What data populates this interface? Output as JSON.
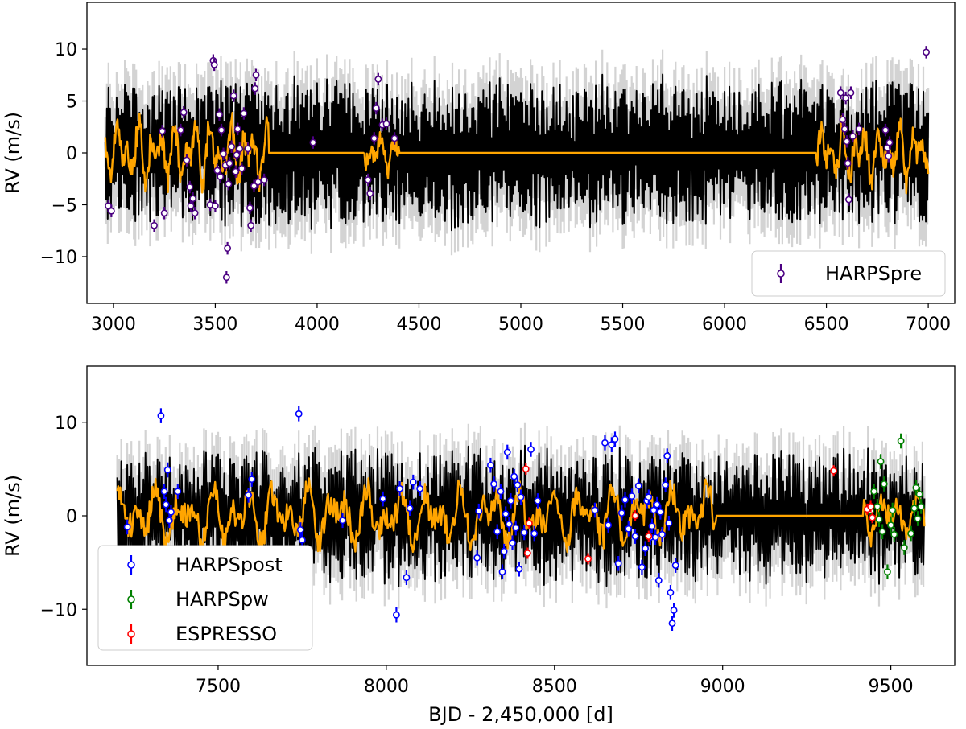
{
  "chart_data": [
    {
      "type": "scatter",
      "panel": "top",
      "ylabel": "RV (m/s)",
      "xlabel": "",
      "xlim": [
        2870,
        7130
      ],
      "ylim": [
        -14.5,
        14.5
      ],
      "xticks": [
        3000,
        3500,
        4000,
        4500,
        5000,
        5500,
        6000,
        6500,
        7000
      ],
      "yticks": [
        -10,
        -5,
        0,
        5,
        10
      ],
      "legend_position": "lower-right",
      "model": {
        "span": [
          2960,
          7000
        ],
        "active_windows": [
          [
            2960,
            3760,
            3.0
          ],
          [
            4230,
            4400,
            1.8
          ],
          [
            6450,
            7000,
            2.8
          ]
        ],
        "colors": {
          "gp_mean": "#ffa500",
          "sample_draws": "#000000",
          "sample_band": "#d3d3d3"
        }
      },
      "series": [
        {
          "name": "HARPSpre",
          "color": "#4b0082",
          "points": [
            [
              2975,
              -5.1,
              0.6
            ],
            [
              2990,
              -5.6,
              0.6
            ],
            [
              3200,
              -7.0,
              0.6
            ],
            [
              3240,
              2.1,
              0.6
            ],
            [
              3250,
              -5.8,
              0.6
            ],
            [
              3330,
              2.2,
              0.6
            ],
            [
              3345,
              3.9,
              0.6
            ],
            [
              3360,
              -0.7,
              0.6
            ],
            [
              3375,
              -3.3,
              0.6
            ],
            [
              3380,
              -5.1,
              0.6
            ],
            [
              3390,
              -4.4,
              0.6
            ],
            [
              3400,
              -5.8,
              0.6
            ],
            [
              3475,
              -5.0,
              0.6
            ],
            [
              3490,
              8.9,
              0.6
            ],
            [
              3495,
              8.5,
              0.6
            ],
            [
              3500,
              -5.1,
              0.6
            ],
            [
              3510,
              -1.7,
              0.6
            ],
            [
              3520,
              3.7,
              0.6
            ],
            [
              3525,
              -2.3,
              0.6
            ],
            [
              3530,
              2.2,
              0.6
            ],
            [
              3540,
              -0.1,
              0.6
            ],
            [
              3550,
              -1.2,
              0.6
            ],
            [
              3555,
              -12.0,
              0.6
            ],
            [
              3560,
              -9.2,
              0.6
            ],
            [
              3565,
              -3.0,
              0.6
            ],
            [
              3570,
              -1.0,
              0.6
            ],
            [
              3580,
              0.6,
              0.6
            ],
            [
              3590,
              5.5,
              0.6
            ],
            [
              3600,
              -1.8,
              0.6
            ],
            [
              3605,
              -0.2,
              0.6
            ],
            [
              3610,
              2.3,
              0.6
            ],
            [
              3620,
              0.4,
              0.6
            ],
            [
              3630,
              -1.5,
              0.6
            ],
            [
              3640,
              3.8,
              0.6
            ],
            [
              3660,
              0.4,
              0.6
            ],
            [
              3670,
              -5.3,
              0.6
            ],
            [
              3675,
              -7.0,
              0.6
            ],
            [
              3690,
              -3.2,
              0.6
            ],
            [
              3695,
              6.2,
              0.6
            ],
            [
              3700,
              7.5,
              0.6
            ],
            [
              3710,
              -2.8,
              0.6
            ],
            [
              3740,
              -2.6,
              0.6
            ],
            [
              3980,
              1.0,
              0.6
            ],
            [
              4250,
              -2.6,
              0.6
            ],
            [
              4260,
              -3.9,
              0.6
            ],
            [
              4280,
              1.4,
              0.6
            ],
            [
              4290,
              4.3,
              0.6
            ],
            [
              4300,
              7.1,
              0.6
            ],
            [
              4320,
              2.7,
              0.6
            ],
            [
              4340,
              2.8,
              0.6
            ],
            [
              4380,
              1.4,
              0.6
            ],
            [
              6570,
              5.8,
              0.6
            ],
            [
              6580,
              3.2,
              0.6
            ],
            [
              6590,
              2.3,
              0.6
            ],
            [
              6595,
              5.3,
              0.6
            ],
            [
              6600,
              1.1,
              0.6
            ],
            [
              6605,
              -1.0,
              0.6
            ],
            [
              6610,
              -4.5,
              0.6
            ],
            [
              6620,
              5.8,
              0.6
            ],
            [
              6630,
              1.6,
              0.6
            ],
            [
              6660,
              2.3,
              0.6
            ],
            [
              6790,
              2.2,
              0.6
            ],
            [
              6800,
              0.5,
              0.6
            ],
            [
              6805,
              -0.3,
              0.6
            ],
            [
              6810,
              1.0,
              0.6
            ],
            [
              6990,
              9.7,
              0.6
            ]
          ]
        }
      ]
    },
    {
      "type": "scatter",
      "panel": "bottom",
      "ylabel": "RV (m/s)",
      "xlabel": "BJD - 2,450,000 [d]",
      "xlim": [
        7110,
        9690
      ],
      "ylim": [
        -16,
        16
      ],
      "xticks": [
        7500,
        8000,
        8500,
        9000,
        9500
      ],
      "yticks": [
        -10,
        0,
        10
      ],
      "legend_position": "lower-left",
      "model": {
        "span": [
          7200,
          9600
        ],
        "active_windows": [
          [
            7200,
            8980,
            3.2
          ],
          [
            9420,
            9600,
            2.5
          ]
        ],
        "colors": {
          "gp_mean": "#ffa500",
          "sample_draws": "#000000",
          "sample_band": "#d3d3d3"
        }
      },
      "series": [
        {
          "name": "HARPSpost",
          "color": "#0000ff",
          "points": [
            [
              7230,
              -1.2,
              0.8
            ],
            [
              7330,
              10.7,
              0.8
            ],
            [
              7340,
              2.6,
              0.8
            ],
            [
              7345,
              1.2,
              0.8
            ],
            [
              7350,
              4.9,
              0.8
            ],
            [
              7355,
              -0.5,
              0.8
            ],
            [
              7360,
              0.4,
              0.8
            ],
            [
              7380,
              2.6,
              0.8
            ],
            [
              7590,
              2.2,
              0.8
            ],
            [
              7600,
              3.9,
              0.8
            ],
            [
              7740,
              10.9,
              0.8
            ],
            [
              7745,
              -1.5,
              0.8
            ],
            [
              7750,
              -2.6,
              0.8
            ],
            [
              7870,
              -0.5,
              0.8
            ],
            [
              7990,
              1.8,
              0.8
            ],
            [
              8030,
              -10.6,
              0.8
            ],
            [
              8040,
              2.9,
              0.8
            ],
            [
              8060,
              -6.6,
              0.8
            ],
            [
              8070,
              0.8,
              0.8
            ],
            [
              8080,
              3.6,
              0.8
            ],
            [
              8100,
              2.9,
              0.8
            ],
            [
              8270,
              -4.5,
              0.8
            ],
            [
              8275,
              0.5,
              0.8
            ],
            [
              8310,
              5.4,
              0.8
            ],
            [
              8320,
              3.4,
              0.8
            ],
            [
              8330,
              -1.7,
              0.8
            ],
            [
              8340,
              2.6,
              0.8
            ],
            [
              8345,
              -6.0,
              0.8
            ],
            [
              8350,
              -3.8,
              0.8
            ],
            [
              8355,
              0.2,
              0.8
            ],
            [
              8360,
              6.8,
              0.8
            ],
            [
              8365,
              -0.9,
              0.8
            ],
            [
              8370,
              1.6,
              0.8
            ],
            [
              8375,
              -2.9,
              0.8
            ],
            [
              8380,
              4.2,
              0.8
            ],
            [
              8385,
              -1.3,
              0.8
            ],
            [
              8390,
              3.3,
              0.8
            ],
            [
              8395,
              -5.7,
              0.8
            ],
            [
              8400,
              2.0,
              0.8
            ],
            [
              8410,
              -1.8,
              0.8
            ],
            [
              8430,
              7.1,
              0.8
            ],
            [
              8440,
              -1.9,
              0.8
            ],
            [
              8450,
              1.6,
              0.8
            ],
            [
              8620,
              0.6,
              0.8
            ],
            [
              8650,
              7.8,
              0.8
            ],
            [
              8660,
              -1.0,
              0.8
            ],
            [
              8670,
              7.6,
              0.8
            ],
            [
              8680,
              8.2,
              0.8
            ],
            [
              8690,
              -5.1,
              0.8
            ],
            [
              8700,
              0.3,
              0.8
            ],
            [
              8710,
              1.7,
              0.8
            ],
            [
              8720,
              -1.4,
              0.8
            ],
            [
              8730,
              2.1,
              0.8
            ],
            [
              8740,
              -2.2,
              0.8
            ],
            [
              8750,
              3.2,
              0.8
            ],
            [
              8760,
              -5.5,
              0.8
            ],
            [
              8770,
              -3.5,
              0.8
            ],
            [
              8775,
              1.6,
              0.8
            ],
            [
              8780,
              2.0,
              0.8
            ],
            [
              8785,
              -2.3,
              0.8
            ],
            [
              8790,
              -1.1,
              0.8
            ],
            [
              8795,
              0.6,
              0.8
            ],
            [
              8800,
              -2.3,
              0.8
            ],
            [
              8805,
              1.2,
              0.8
            ],
            [
              8810,
              -6.9,
              0.8
            ],
            [
              8815,
              0.4,
              0.8
            ],
            [
              8820,
              -2.0,
              0.8
            ],
            [
              8830,
              3.3,
              0.8
            ],
            [
              8835,
              6.4,
              0.8
            ],
            [
              8840,
              -0.8,
              0.8
            ],
            [
              8845,
              -8.2,
              0.8
            ],
            [
              8850,
              -11.5,
              0.8
            ],
            [
              8855,
              -10.1,
              0.8
            ],
            [
              8860,
              -5.3,
              0.8
            ]
          ]
        },
        {
          "name": "HARPSpw",
          "color": "#008000",
          "points": [
            [
              9440,
              0.5,
              0.8
            ],
            [
              9450,
              2.6,
              0.8
            ],
            [
              9460,
              1.0,
              0.8
            ],
            [
              9465,
              -0.4,
              0.8
            ],
            [
              9470,
              5.8,
              0.8
            ],
            [
              9475,
              -1.7,
              0.8
            ],
            [
              9480,
              3.4,
              0.8
            ],
            [
              9490,
              -6.0,
              0.8
            ],
            [
              9500,
              -1.0,
              0.8
            ],
            [
              9505,
              0.6,
              0.8
            ],
            [
              9510,
              -2.0,
              0.8
            ],
            [
              9530,
              8.0,
              0.8
            ],
            [
              9540,
              -3.4,
              0.8
            ],
            [
              9560,
              -1.9,
              0.8
            ],
            [
              9570,
              0.8,
              0.8
            ],
            [
              9575,
              3.0,
              0.8
            ],
            [
              9580,
              -0.3,
              0.8
            ],
            [
              9585,
              2.3,
              0.8
            ],
            [
              9590,
              1.0,
              0.8
            ]
          ]
        },
        {
          "name": "ESPRESSO",
          "color": "#ff0000",
          "points": [
            [
              8415,
              5.0,
              0.6
            ],
            [
              8420,
              -4.0,
              0.6
            ],
            [
              8425,
              -0.8,
              0.6
            ],
            [
              8600,
              -4.6,
              0.6
            ],
            [
              8740,
              0.0,
              0.6
            ],
            [
              8780,
              -2.2,
              0.6
            ],
            [
              9330,
              4.8,
              0.6
            ],
            [
              9430,
              0.7,
              0.6
            ],
            [
              9440,
              1.0,
              0.6
            ],
            [
              9445,
              -0.2,
              0.6
            ]
          ]
        }
      ]
    }
  ]
}
